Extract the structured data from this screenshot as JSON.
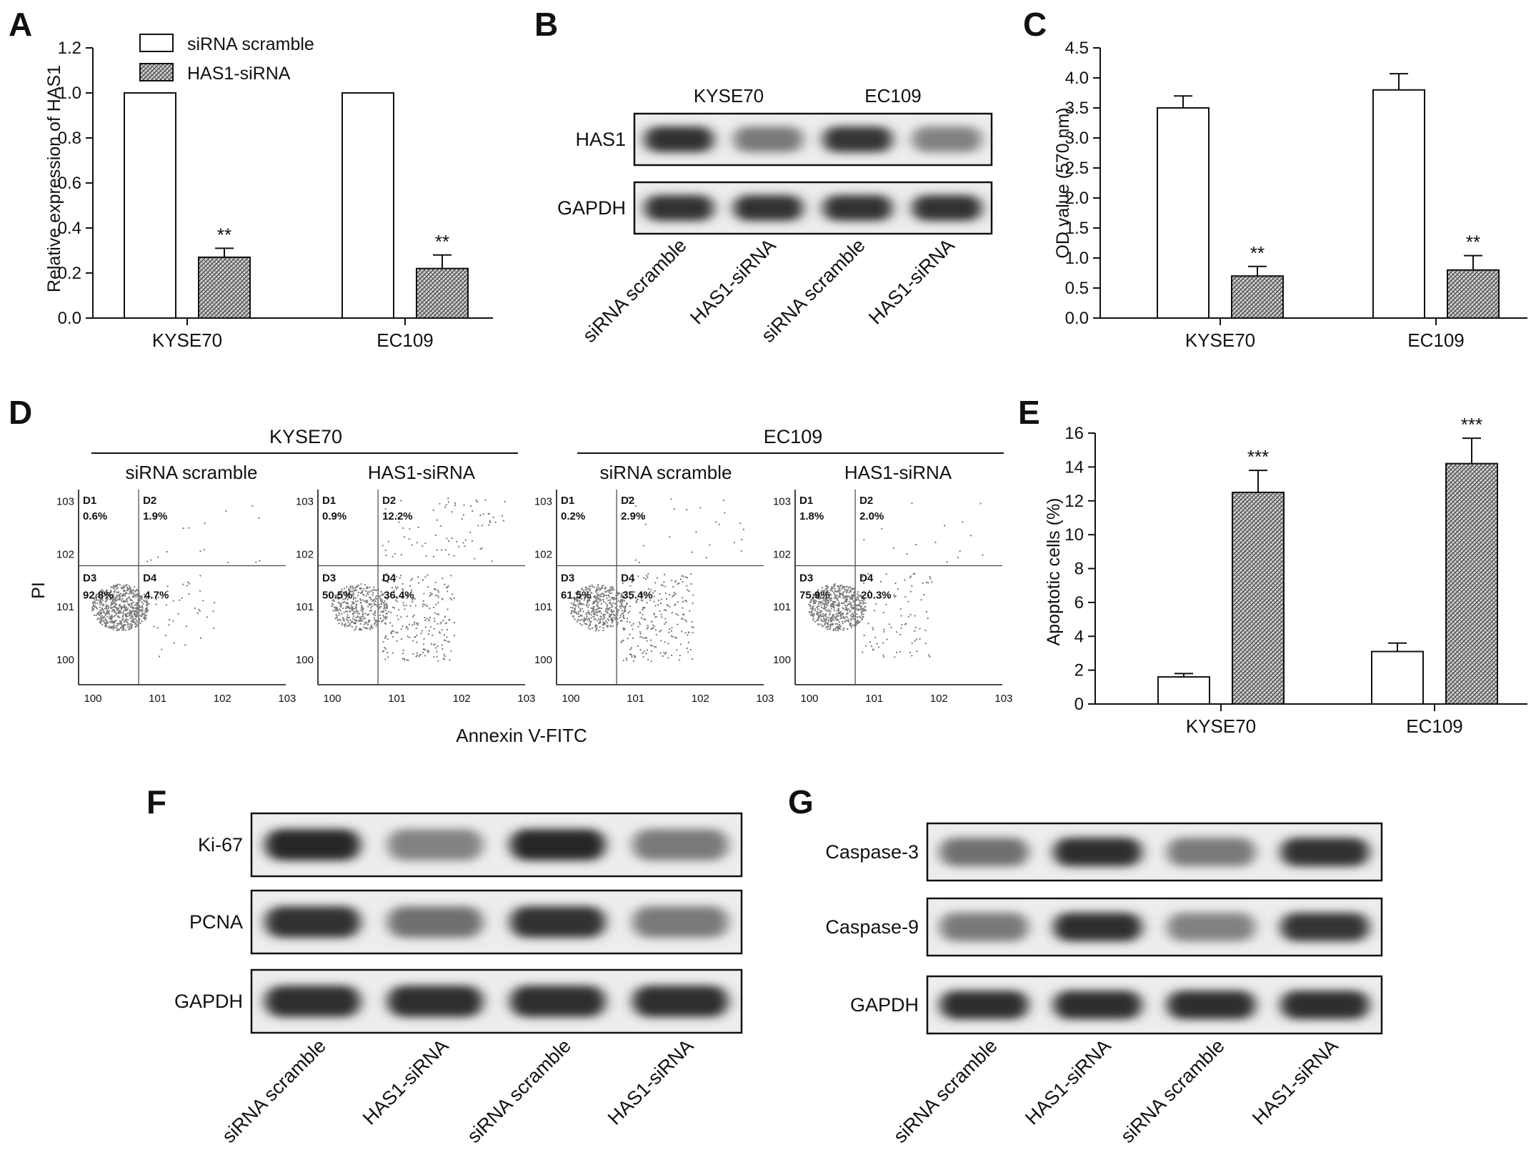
{
  "figure": {
    "panel_letters": [
      "A",
      "B",
      "C",
      "D",
      "E",
      "F",
      "G"
    ],
    "colors": {
      "ink": "#111111",
      "open_bar": "#ffffff",
      "hatched_bar": "#9a9a9a",
      "blot_bg": "#ededed",
      "band": "#1a1a1a",
      "dot": "#777777"
    }
  },
  "panel_a": {
    "ylabel": "Relative expression of HAS1",
    "legend": [
      "siRNA scramble",
      "HAS1-siRNA"
    ]
  },
  "panel_b": {
    "cells": [
      "KYSE70",
      "EC109"
    ],
    "rows": [
      {
        "label": "HAS1",
        "intensity": [
          0.95,
          0.55,
          0.92,
          0.5
        ]
      },
      {
        "label": "GAPDH",
        "intensity": [
          0.95,
          0.95,
          0.95,
          0.95
        ]
      }
    ],
    "lanes": [
      "siRNA scramble",
      "HAS1-siRNA",
      "siRNA scramble",
      "HAS1-siRNA"
    ]
  },
  "panel_c": {
    "ylabel": "OD value (570 nm)"
  },
  "panel_d": {
    "cells": [
      "KYSE70",
      "EC109"
    ],
    "conditions": [
      "siRNA scramble",
      "HAS1-siRNA",
      "siRNA scramble",
      "HAS1-siRNA"
    ],
    "ylabel": "PI",
    "xlabel": "Annexin V-FITC",
    "quadrant_names": [
      "D1",
      "D2",
      "D3",
      "D4"
    ],
    "plots": [
      {
        "D1": "0.6%",
        "D2": "1.9%",
        "D3": "92.8%",
        "D4": "4.7%"
      },
      {
        "D1": "0.9%",
        "D2": "12.2%",
        "D3": "50.5%",
        "D4": "36.4%"
      },
      {
        "D1": "0.2%",
        "D2": "2.9%",
        "D3": "61.5%",
        "D4": "35.4%"
      },
      {
        "D1": "1.8%",
        "D2": "2.0%",
        "D3": "75.9%",
        "D4": "20.3%"
      }
    ]
  },
  "panel_e": {
    "ylabel": "Apoptotic cells (%)"
  },
  "panel_f": {
    "rows": [
      {
        "label": "Ki-67",
        "intensity": [
          1.0,
          0.5,
          1.0,
          0.55
        ]
      },
      {
        "label": "PCNA",
        "intensity": [
          0.95,
          0.6,
          0.95,
          0.55
        ]
      },
      {
        "label": "GAPDH",
        "intensity": [
          0.97,
          0.97,
          0.97,
          0.97
        ]
      }
    ],
    "lanes": [
      "siRNA scramble",
      "HAS1-siRNA",
      "siRNA scramble",
      "HAS1-siRNA"
    ]
  },
  "panel_g": {
    "rows": [
      {
        "label": "Caspase-3",
        "intensity": [
          0.6,
          0.97,
          0.55,
          0.95
        ]
      },
      {
        "label": "Caspase-9",
        "intensity": [
          0.55,
          0.97,
          0.5,
          0.92
        ]
      },
      {
        "label": "GAPDH",
        "intensity": [
          0.97,
          0.97,
          0.97,
          0.97
        ]
      }
    ],
    "lanes": [
      "siRNA scramble",
      "HAS1-siRNA",
      "siRNA scramble",
      "HAS1-siRNA"
    ]
  },
  "chart_data": [
    {
      "type": "bar",
      "panel": "A",
      "categories": [
        "KYSE70",
        "EC109"
      ],
      "series": [
        {
          "name": "siRNA scramble",
          "values": [
            1.0,
            1.0
          ],
          "errors": [
            0,
            0
          ]
        },
        {
          "name": "HAS1-siRNA",
          "values": [
            0.27,
            0.22
          ],
          "errors": [
            0.04,
            0.06
          ]
        }
      ],
      "significance": [
        [
          "",
          "**"
        ],
        [
          "",
          "**"
        ]
      ],
      "ylabel": "Relative expression of HAS1",
      "ylim": [
        0,
        1.2
      ],
      "yticks": [
        "0.0",
        "0.2",
        "0.4",
        "0.6",
        "0.8",
        "1.0",
        "1.2"
      ],
      "legend": "top-left"
    },
    {
      "type": "bar",
      "panel": "C",
      "categories": [
        "KYSE70",
        "EC109"
      ],
      "series": [
        {
          "values": [
            3.5,
            3.8
          ],
          "errors": [
            0.2,
            0.27
          ]
        },
        {
          "values": [
            0.7,
            0.8
          ],
          "errors": [
            0.16,
            0.24
          ]
        }
      ],
      "significance": [
        [
          "",
          "**"
        ],
        [
          "",
          "**"
        ]
      ],
      "ylabel": "OD value (570 nm)",
      "ylim": [
        0,
        4.5
      ],
      "yticks": [
        "0.0",
        "0.5",
        "1.0",
        "1.5",
        "2.0",
        "2.5",
        "3.0",
        "3.5",
        "4.0",
        "4.5"
      ]
    },
    {
      "type": "bar",
      "panel": "E",
      "categories": [
        "KYSE70",
        "EC109"
      ],
      "series": [
        {
          "values": [
            1.6,
            3.1
          ],
          "errors": [
            0.2,
            0.5
          ]
        },
        {
          "values": [
            12.5,
            14.2
          ],
          "errors": [
            1.3,
            1.5
          ]
        }
      ],
      "significance": [
        [
          "",
          "***"
        ],
        [
          "",
          "***"
        ]
      ],
      "ylabel": "Apoptotic cells (%)",
      "ylim": [
        0,
        16
      ],
      "yticks": [
        "0",
        "2",
        "4",
        "6",
        "8",
        "10",
        "12",
        "14",
        "16"
      ]
    }
  ]
}
